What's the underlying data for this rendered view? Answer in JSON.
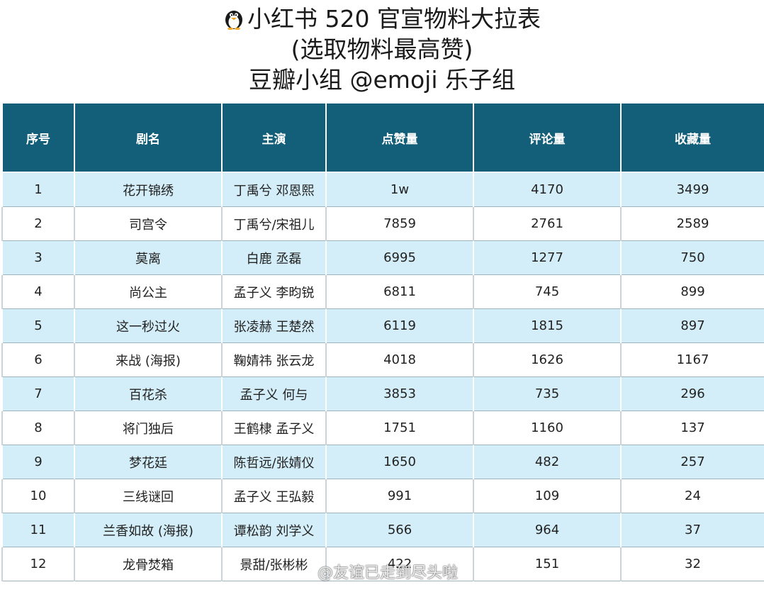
{
  "title": {
    "line1": "小红书 520 官宣物料大拉表",
    "line2": "(选取物料最高赞)",
    "line3": "豆瓣小组 @emoji 乐子组"
  },
  "table": {
    "headers": [
      "序号",
      "剧名",
      "主演",
      "点赞量",
      "评论量",
      "收藏量"
    ],
    "rows": [
      [
        "1",
        "花开锦绣",
        "丁禹兮 邓恩熙",
        "1w",
        "4170",
        "3499"
      ],
      [
        "2",
        "司宫令",
        "丁禹兮/宋祖儿",
        "7859",
        "2761",
        "2589"
      ],
      [
        "3",
        "莫离",
        "白鹿  丞磊",
        "6995",
        "1277",
        "750"
      ],
      [
        "4",
        "尚公主",
        "孟子义 李昀锐",
        "6811",
        "745",
        "899"
      ],
      [
        "5",
        "这一秒过火",
        "张凌赫 王楚然",
        "6119",
        "1815",
        "897"
      ],
      [
        "6",
        "来战 (海报)",
        "鞠婧祎 张云龙",
        "4018",
        "1626",
        "1167"
      ],
      [
        "7",
        "百花杀",
        "孟子义 何与",
        "3853",
        "735",
        "296"
      ],
      [
        "8",
        "将门独后",
        "王鹤棣 孟子义",
        "1751",
        "1160",
        "137"
      ],
      [
        "9",
        "梦花廷",
        "陈哲远/张婧仪",
        "1650",
        "482",
        "257"
      ],
      [
        "10",
        "三线谜回",
        "孟子义 王弘毅",
        "991",
        "109",
        "24"
      ],
      [
        "11",
        "兰香如故 (海报)",
        "谭松韵 刘学义",
        "566",
        "964",
        "37"
      ],
      [
        "12",
        "龙骨焚箱",
        "景甜/张彬彬",
        "422",
        "151",
        "32"
      ]
    ]
  },
  "watermark": "@友谊已走到尽头啦",
  "colors": {
    "header_bg": "#135f7a",
    "row_stripe": "#d3eef8"
  }
}
